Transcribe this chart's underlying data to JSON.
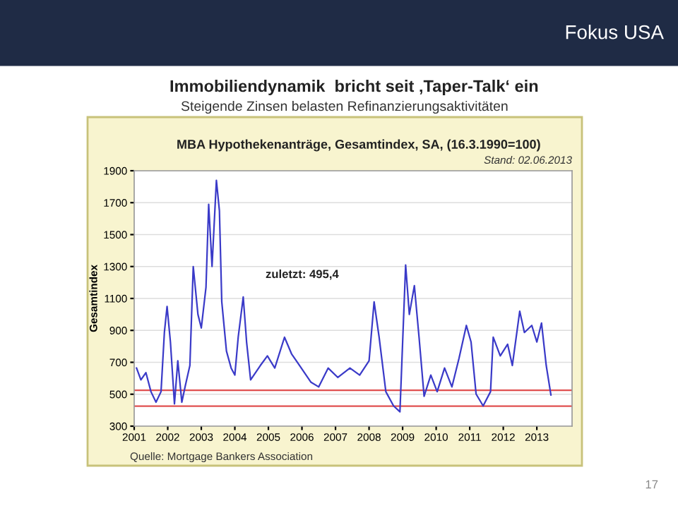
{
  "chart_data": {
    "type": "line",
    "title": "Immobiliendynamik  bricht seit ‚Taper-Talk‘ ein",
    "subtitle": "Steigende Zinsen belasten Refinanzierungsaktivitäten",
    "ylabel": "Gesamtindex",
    "annotations": [
      "Fokus USA",
      "MBA Hypothekenanträge, Gesamtindex, SA, (16.3.1990=100)",
      "Stand: 02.06.2013",
      "zuletzt: 495,4",
      "Quelle: Mortgage Bankers Association",
      "17"
    ],
    "series": [
      {
        "color": "#3a3ac8",
        "x": [
          2001.07,
          2001.2,
          2001.35,
          2001.5,
          2001.65,
          2001.8,
          2001.9,
          2001.98,
          2002.08,
          2002.2,
          2002.3,
          2002.42,
          2002.52,
          2002.66,
          2002.76,
          2002.9,
          2003.0,
          2003.14,
          2003.22,
          2003.32,
          2003.45,
          2003.54,
          2003.61,
          2003.75,
          2003.89,
          2004.0,
          2004.1,
          2004.25,
          2004.35,
          2004.47,
          2004.76,
          2004.97,
          2005.19,
          2005.48,
          2005.69,
          2005.98,
          2006.27,
          2006.5,
          2006.78,
          2007.07,
          2007.43,
          2007.72,
          2008.0,
          2008.15,
          2008.3,
          2008.5,
          2008.73,
          2008.92,
          2009.09,
          2009.2,
          2009.35,
          2009.49,
          2009.64,
          2009.84,
          2010.03,
          2010.25,
          2010.47,
          2010.68,
          2010.9,
          2011.04,
          2011.19,
          2011.4,
          2011.62,
          2011.7,
          2011.91,
          2012.13,
          2012.27,
          2012.49,
          2012.63,
          2012.85,
          2013.0,
          2013.14,
          2013.28,
          2013.42
        ],
        "values": [
          664,
          590,
          635,
          516,
          450,
          516,
          887,
          1050,
          827,
          440,
          709,
          450,
          550,
          680,
          1300,
          1000,
          915,
          1170,
          1690,
          1300,
          1840,
          1650,
          1080,
          770,
          664,
          620,
          857,
          1109,
          827,
          590,
          680,
          740,
          664,
          857,
          753,
          664,
          575,
          546,
          664,
          605,
          664,
          620,
          709,
          1079,
          857,
          516,
          427,
          390,
          1310,
          1000,
          1180,
          857,
          487,
          620,
          516,
          664,
          546,
          724,
          931,
          827,
          501,
          427,
          516,
          857,
          740,
          813,
          680,
          1020,
          887,
          931,
          827,
          946,
          680,
          495.4
        ]
      }
    ],
    "xlim": [
      2001,
      2014.05
    ],
    "xticks": [
      2001,
      2002,
      2003,
      2004,
      2005,
      2006,
      2007,
      2008,
      2009,
      2010,
      2011,
      2012,
      2013
    ],
    "ylim": [
      300,
      1900
    ],
    "yticks": [
      300,
      500,
      700,
      900,
      1100,
      1300,
      1500,
      1700,
      1900
    ],
    "ref_lines": [
      {
        "axis": "y",
        "value": 525,
        "color": "#e05050"
      },
      {
        "axis": "y",
        "value": 425,
        "color": "#e05050"
      }
    ],
    "grid": "y",
    "marker": "none",
    "line_style": "solid"
  }
}
